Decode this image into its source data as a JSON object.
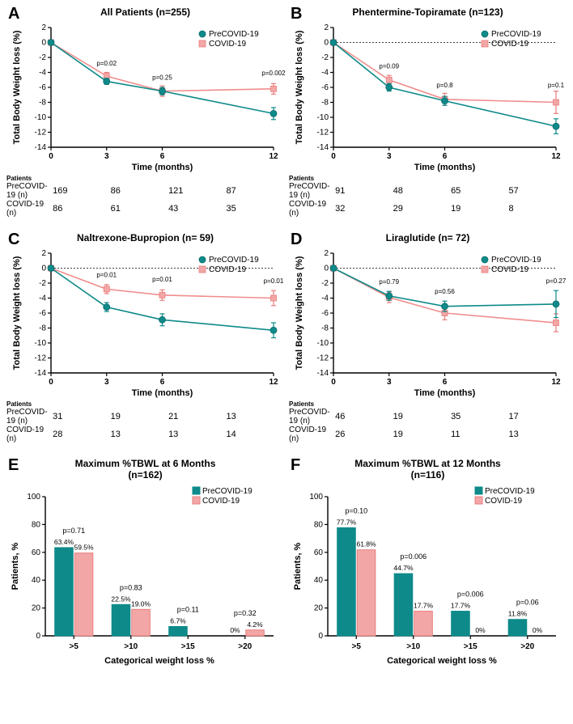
{
  "colors": {
    "pre": "#0e8a8a",
    "pre_border": "#0b6a6a",
    "cov": "#f3a6a6",
    "cov_border": "#e97d7d",
    "axis": "#000000",
    "bg": "#ffffff"
  },
  "legend_labels": {
    "pre": "PreCOVID-19",
    "cov": "COVID-19"
  },
  "line_panels": {
    "A": {
      "letter": "A",
      "title": "All Patients (n=255)",
      "zero_dashed": false,
      "ylim": [
        -14,
        2
      ],
      "ytick_step": 2,
      "xvals": [
        0,
        3,
        6,
        12
      ],
      "ylabel": "Total Body Weight loss (%)",
      "xlabel": "Time (months)",
      "pre": {
        "y": [
          0,
          -5.2,
          -6.5,
          -9.5
        ],
        "err": [
          0,
          0.4,
          0.5,
          0.8
        ]
      },
      "cov": {
        "y": [
          0,
          -4.5,
          -6.5,
          -6.2
        ],
        "err": [
          0,
          0.5,
          0.7,
          0.7
        ]
      },
      "pvals": {
        "3": "p=0.02",
        "6": "p=0.25",
        "12": "p=0.002"
      },
      "counts": {
        "pre": [
          169,
          86,
          121,
          87
        ],
        "cov": [
          86,
          61,
          43,
          35
        ]
      }
    },
    "B": {
      "letter": "B",
      "title": "Phentermine-Topiramate (n=123)",
      "zero_dashed": true,
      "ylim": [
        -14,
        2
      ],
      "ytick_step": 2,
      "xvals": [
        0,
        3,
        6,
        12
      ],
      "ylabel": "Total Body Weight loss (%)",
      "xlabel": "Time (months)",
      "pre": {
        "y": [
          0,
          -6.0,
          -7.8,
          -11.2
        ],
        "err": [
          0,
          0.5,
          0.6,
          1.0
        ]
      },
      "cov": {
        "y": [
          0,
          -5.0,
          -7.6,
          -8.0
        ],
        "err": [
          0,
          0.6,
          0.8,
          1.5
        ]
      },
      "pvals": {
        "3": "p=0.09",
        "6": "p=0.8",
        "12": "p=0.1"
      },
      "counts": {
        "pre": [
          91,
          48,
          65,
          57
        ],
        "cov": [
          32,
          29,
          19,
          8
        ]
      }
    },
    "C": {
      "letter": "C",
      "title": "Naltrexone-Bupropion (n= 59)",
      "zero_dashed": true,
      "ylim": [
        -14,
        2
      ],
      "ytick_step": 2,
      "xvals": [
        0,
        3,
        6,
        12
      ],
      "ylabel": "Total Body Weight loss (%)",
      "xlabel": "Time (months)",
      "pre": {
        "y": [
          0,
          -5.2,
          -6.9,
          -8.3
        ],
        "err": [
          0,
          0.6,
          0.8,
          1.0
        ]
      },
      "cov": {
        "y": [
          0,
          -2.8,
          -3.6,
          -4.0
        ],
        "err": [
          0,
          0.6,
          0.7,
          1.0
        ]
      },
      "pvals": {
        "3": "p=0.01",
        "6": "p=0.01",
        "12": "p=0.01"
      },
      "counts": {
        "pre": [
          31,
          19,
          21,
          13
        ],
        "cov": [
          28,
          13,
          13,
          14
        ]
      }
    },
    "D": {
      "letter": "D",
      "title": "Liraglutide (n= 72)",
      "zero_dashed": true,
      "ylim": [
        -14,
        2
      ],
      "ytick_step": 2,
      "xvals": [
        0,
        3,
        6,
        12
      ],
      "ylabel": "Total Body Weight loss (%)",
      "xlabel": "Time (months)",
      "pre": {
        "y": [
          0,
          -3.7,
          -5.1,
          -4.8
        ],
        "err": [
          0,
          0.6,
          0.7,
          1.8
        ]
      },
      "cov": {
        "y": [
          0,
          -3.9,
          -6.0,
          -7.3
        ],
        "err": [
          0,
          0.7,
          0.9,
          1.2
        ]
      },
      "pvals": {
        "3": "p=0.79",
        "6": "p=0.56",
        "12": "p=0.27"
      },
      "counts": {
        "pre": [
          46,
          19,
          35,
          17
        ],
        "cov": [
          26,
          19,
          11,
          13
        ]
      }
    }
  },
  "bar_panels": {
    "E": {
      "letter": "E",
      "title": "Maximum %TBWL at 6 Months\n(n=162)",
      "ylim": [
        0,
        100
      ],
      "ytick_step": 20,
      "ylabel": "Patients, %",
      "xlabel": "Categorical weight loss %",
      "categories": [
        ">5",
        ">10",
        ">15",
        ">20"
      ],
      "pre": [
        63.4,
        22.5,
        6.7,
        0
      ],
      "cov": [
        59.5,
        19.0,
        0,
        4.2
      ],
      "pre_labels": [
        "63.4%",
        "22.5%",
        "6.7%",
        "0%"
      ],
      "cov_labels": [
        "59.5%",
        "19.0%",
        "",
        "4.2%"
      ],
      "pvals": [
        "p=0.71",
        "p=0.83",
        "p=0.11",
        "p=0.32"
      ]
    },
    "F": {
      "letter": "F",
      "title": "Maximum %TBWL at 12 Months\n(n=116)",
      "ylim": [
        0,
        100
      ],
      "ytick_step": 20,
      "ylabel": "Patients, %",
      "xlabel": "Categorical weight loss %",
      "categories": [
        ">5",
        ">10",
        ">15",
        ">20"
      ],
      "pre": [
        77.7,
        44.7,
        17.7,
        11.8
      ],
      "cov": [
        61.8,
        17.7,
        0,
        0
      ],
      "pre_labels": [
        "77.7%",
        "44.7%",
        "17.7%",
        "11.8%"
      ],
      "cov_labels": [
        "61.8%",
        "17.7%",
        "0%",
        "0%"
      ],
      "pvals": [
        "p=0.10",
        "p=0.006",
        "p=0.006",
        "p=0.06"
      ]
    }
  },
  "counts_header": "Patients",
  "counts_rows": {
    "pre": "PreCOVID-19 (n)",
    "cov": "COVID-19 (n)"
  }
}
